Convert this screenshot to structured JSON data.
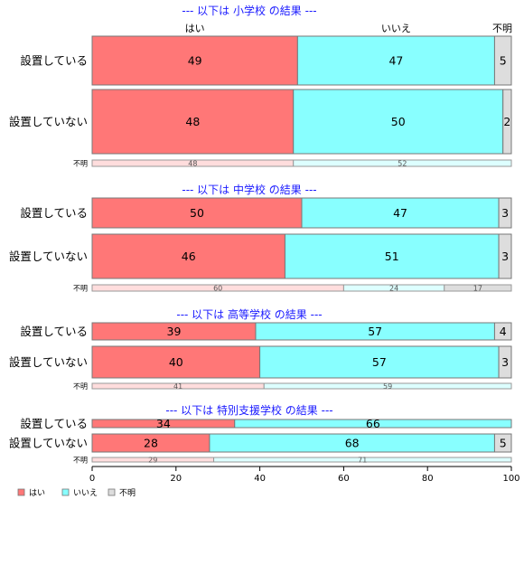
{
  "chart_data": {
    "type": "bar",
    "orientation": "horizontal",
    "stacked": true,
    "categories": [
      "はい",
      "いいえ",
      "不明"
    ],
    "column_labels": [
      "はい",
      "いいえ",
      "不明"
    ],
    "xlim": [
      0,
      100
    ],
    "xticks": [
      0,
      20,
      40,
      60,
      80,
      100
    ],
    "colors": {
      "はい": "#ff7777",
      "いいえ": "#88ffff",
      "不明": "#dddddd"
    },
    "light_colors": {
      "はい": "#ffdddd",
      "いいえ": "#ddffff",
      "不明": "#dddddd"
    },
    "legend": {
      "position": "bottom-left",
      "items": [
        "はい",
        "いいえ",
        "不明"
      ]
    },
    "panels": [
      {
        "title": "--- 以下は 小学校 の結果 ---",
        "rows": [
          {
            "label": "設置している",
            "values": [
              49,
              47,
              5
            ]
          },
          {
            "label": "設置していない",
            "values": [
              48,
              50,
              2
            ]
          },
          {
            "label": "不明",
            "values": [
              48,
              52
            ],
            "small": true
          }
        ]
      },
      {
        "title": "--- 以下は 中学校 の結果 ---",
        "rows": [
          {
            "label": "設置している",
            "values": [
              50,
              47,
              3
            ]
          },
          {
            "label": "設置していない",
            "values": [
              46,
              51,
              3
            ]
          },
          {
            "label": "不明",
            "values": [
              60,
              24,
              17
            ],
            "small": true
          }
        ]
      },
      {
        "title": "--- 以下は 高等学校 の結果 ---",
        "rows": [
          {
            "label": "設置している",
            "values": [
              39,
              57,
              4
            ]
          },
          {
            "label": "設置していない",
            "values": [
              40,
              57,
              3
            ]
          },
          {
            "label": "不明",
            "values": [
              41,
              59
            ],
            "small": true
          }
        ]
      },
      {
        "title": "--- 以下は 特別支援学校 の結果 ---",
        "rows": [
          {
            "label": "設置している",
            "values": [
              34,
              66
            ]
          },
          {
            "label": "設置していない",
            "values": [
              28,
              68,
              5
            ]
          },
          {
            "label": "不明",
            "values": [
              29,
              71
            ],
            "small": true
          }
        ]
      }
    ]
  }
}
